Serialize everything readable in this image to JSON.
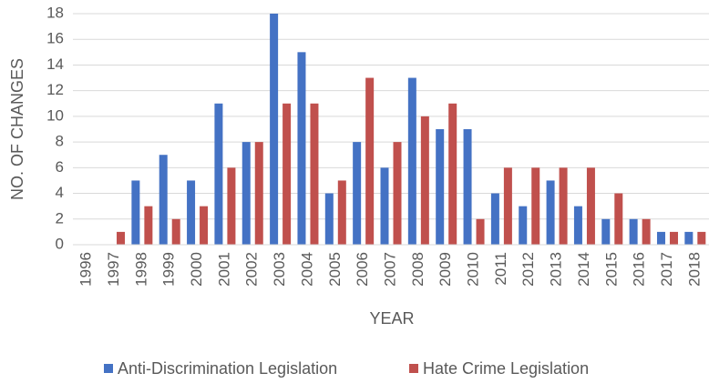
{
  "chart_data": {
    "type": "bar",
    "title": "",
    "xlabel": "YEAR",
    "ylabel": "NO. OF CHANGES",
    "ylim": [
      0,
      18
    ],
    "yticks": [
      "0",
      "2",
      "4",
      "6",
      "8",
      "10",
      "12",
      "14",
      "16",
      "18"
    ],
    "grid": true,
    "legend_position": "bottom",
    "categories": [
      "1996",
      "1997",
      "1998",
      "1999",
      "2000",
      "2001",
      "2002",
      "2003",
      "2004",
      "2005",
      "2006",
      "2007",
      "2008",
      "2009",
      "2010",
      "2011",
      "2012",
      "2013",
      "2014",
      "2015",
      "2016",
      "2017",
      "2018"
    ],
    "series": [
      {
        "name": "Anti-Discrimination Legislation",
        "color": "#4472c4",
        "values": [
          0,
          0,
          5,
          7,
          5,
          11,
          8,
          18,
          15,
          4,
          8,
          6,
          13,
          9,
          9,
          4,
          3,
          5,
          3,
          2,
          2,
          1,
          1
        ]
      },
      {
        "name": "Hate Crime Legislation",
        "color": "#c0504d",
        "values": [
          0,
          1,
          3,
          2,
          3,
          6,
          8,
          11,
          11,
          5,
          13,
          8,
          10,
          11,
          2,
          6,
          6,
          6,
          6,
          4,
          2,
          1,
          1
        ]
      }
    ]
  }
}
